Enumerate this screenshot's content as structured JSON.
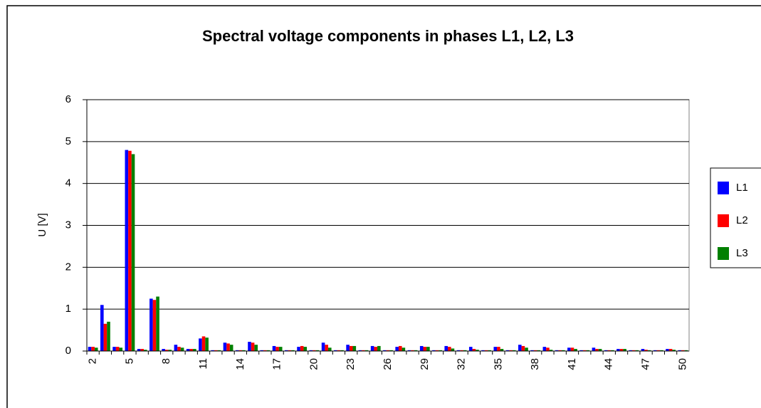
{
  "chart_data": {
    "type": "bar",
    "title": "Spectral voltage components in phases L1, L2, L3",
    "y_label": "U [V]",
    "categories": [
      "2",
      null,
      null,
      "5",
      null,
      null,
      "8",
      null,
      null,
      "11",
      null,
      null,
      "14",
      null,
      null,
      "17",
      null,
      null,
      "20",
      null,
      null,
      "23",
      null,
      null,
      "26",
      null,
      null,
      "29",
      null,
      null,
      "32",
      null,
      null,
      "35",
      null,
      null,
      "38",
      null,
      null,
      "41",
      null,
      null,
      "44",
      null,
      null,
      "47",
      null,
      null,
      "50"
    ],
    "series": [
      {
        "name": "L1",
        "color": "#0000ff",
        "values": [
          0.1,
          1.1,
          0.1,
          4.8,
          0.05,
          1.25,
          0.05,
          0.15,
          0.05,
          0.3,
          0.02,
          0.2,
          0.02,
          0.22,
          0.02,
          0.12,
          0.02,
          0.1,
          0.02,
          0.2,
          0.02,
          0.15,
          0.02,
          0.12,
          0.02,
          0.1,
          0.02,
          0.12,
          0.02,
          0.12,
          0.02,
          0.1,
          0.02,
          0.1,
          0.02,
          0.15,
          0.02,
          0.1,
          0.02,
          0.08,
          0.02,
          0.08,
          0.02,
          0.05,
          0.02,
          0.05,
          0.02,
          0.05,
          0.02
        ]
      },
      {
        "name": "L2",
        "color": "#ff0000",
        "values": [
          0.1,
          0.65,
          0.1,
          4.78,
          0.05,
          1.22,
          0.03,
          0.1,
          0.05,
          0.35,
          0.02,
          0.18,
          0.02,
          0.2,
          0.02,
          0.1,
          0.02,
          0.12,
          0.02,
          0.15,
          0.02,
          0.12,
          0.02,
          0.1,
          0.02,
          0.12,
          0.02,
          0.1,
          0.02,
          0.1,
          0.02,
          0.05,
          0.02,
          0.1,
          0.02,
          0.12,
          0.02,
          0.08,
          0.02,
          0.08,
          0.02,
          0.05,
          0.02,
          0.05,
          0.02,
          0.03,
          0.02,
          0.05,
          0.02
        ]
      },
      {
        "name": "L3",
        "color": "#008000",
        "values": [
          0.08,
          0.7,
          0.08,
          4.7,
          0.03,
          1.3,
          0.03,
          0.08,
          0.05,
          0.32,
          0.02,
          0.15,
          0.02,
          0.15,
          0.02,
          0.1,
          0.02,
          0.1,
          0.02,
          0.08,
          0.02,
          0.12,
          0.02,
          0.12,
          0.02,
          0.08,
          0.02,
          0.1,
          0.02,
          0.06,
          0.02,
          0.03,
          0.02,
          0.05,
          0.02,
          0.08,
          0.02,
          0.03,
          0.02,
          0.05,
          0.02,
          0.05,
          0.02,
          0.05,
          0.02,
          0.02,
          0.02,
          0.03,
          0.02
        ]
      }
    ],
    "ylim": [
      0,
      6
    ],
    "yticks": [
      0,
      1,
      2,
      3,
      4,
      5,
      6
    ],
    "grid": true,
    "legend": "right"
  }
}
